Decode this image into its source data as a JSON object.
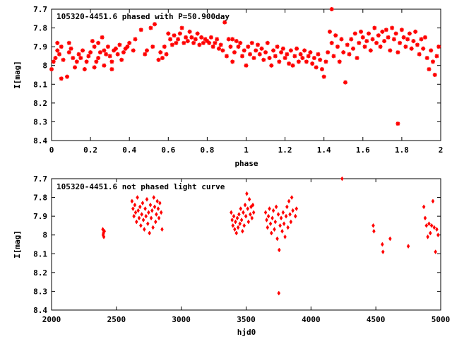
{
  "chart_data": [
    {
      "type": "scatter",
      "title": "105320-4451.6 phased with P=50.900day",
      "xlabel": "phase",
      "ylabel": "I[mag]",
      "xlim": [
        0,
        2
      ],
      "ylim": [
        8.4,
        7.7
      ],
      "y_inverted": true,
      "marker": "star",
      "color": "#ff0000",
      "x_ticks": [
        0,
        0.2,
        0.4,
        0.6,
        0.8,
        1,
        1.2,
        1.4,
        1.6,
        1.8,
        2
      ],
      "x_tick_labels": [
        "0",
        "0.2",
        "0.4",
        "0.6",
        "0.8",
        "1",
        "1.2",
        "1.4",
        "1.6",
        "1.8",
        "2"
      ],
      "y_ticks": [
        7.7,
        7.8,
        7.9,
        8,
        8.1,
        8.2,
        8.3,
        8.4
      ],
      "y_tick_labels": [
        "7.7",
        "7.8",
        "7.9",
        "8",
        "8.1",
        "8.2",
        "8.3",
        "8.4"
      ],
      "points": [
        [
          0.0,
          8.02
        ],
        [
          0.01,
          7.98
        ],
        [
          0.02,
          7.96
        ],
        [
          0.03,
          7.88
        ],
        [
          0.03,
          7.92
        ],
        [
          0.04,
          7.94
        ],
        [
          0.05,
          7.9
        ],
        [
          0.05,
          8.07
        ],
        [
          0.06,
          7.97
        ],
        [
          0.08,
          8.06
        ],
        [
          0.09,
          7.88
        ],
        [
          0.09,
          7.93
        ],
        [
          0.1,
          7.91
        ],
        [
          0.11,
          7.96
        ],
        [
          0.12,
          8.01
        ],
        [
          0.13,
          7.98
        ],
        [
          0.14,
          7.94
        ],
        [
          0.15,
          7.96
        ],
        [
          0.16,
          7.92
        ],
        [
          0.17,
          8.02
        ],
        [
          0.18,
          7.98
        ],
        [
          0.19,
          7.95
        ],
        [
          0.2,
          7.93
        ],
        [
          0.21,
          7.87
        ],
        [
          0.22,
          7.9
        ],
        [
          0.22,
          8.01
        ],
        [
          0.23,
          7.98
        ],
        [
          0.24,
          7.96
        ],
        [
          0.24,
          7.88
        ],
        [
          0.25,
          7.93
        ],
        [
          0.26,
          7.85
        ],
        [
          0.27,
          7.92
        ],
        [
          0.27,
          8.0
        ],
        [
          0.28,
          7.94
        ],
        [
          0.29,
          7.9
        ],
        [
          0.3,
          7.95
        ],
        [
          0.31,
          7.98
        ],
        [
          0.31,
          8.02
        ],
        [
          0.32,
          7.92
        ],
        [
          0.33,
          7.91
        ],
        [
          0.34,
          7.94
        ],
        [
          0.35,
          7.89
        ],
        [
          0.36,
          7.97
        ],
        [
          0.37,
          7.93
        ],
        [
          0.38,
          7.91
        ],
        [
          0.39,
          7.9
        ],
        [
          0.4,
          7.88
        ],
        [
          0.42,
          7.92
        ],
        [
          0.43,
          7.86
        ],
        [
          0.46,
          7.81
        ],
        [
          0.48,
          7.94
        ],
        [
          0.49,
          7.92
        ],
        [
          0.51,
          7.8
        ],
        [
          0.52,
          7.9
        ],
        [
          0.53,
          7.78
        ],
        [
          0.55,
          7.97
        ],
        [
          0.56,
          7.93
        ],
        [
          0.57,
          7.96
        ],
        [
          0.58,
          7.9
        ],
        [
          0.59,
          7.94
        ],
        [
          0.6,
          7.83
        ],
        [
          0.61,
          7.86
        ],
        [
          0.62,
          7.89
        ],
        [
          0.63,
          7.84
        ],
        [
          0.64,
          7.88
        ],
        [
          0.65,
          7.86
        ],
        [
          0.66,
          7.83
        ],
        [
          0.67,
          7.8
        ],
        [
          0.68,
          7.88
        ],
        [
          0.69,
          7.85
        ],
        [
          0.7,
          7.87
        ],
        [
          0.71,
          7.82
        ],
        [
          0.72,
          7.85
        ],
        [
          0.73,
          7.88
        ],
        [
          0.74,
          7.86
        ],
        [
          0.75,
          7.83
        ],
        [
          0.76,
          7.89
        ],
        [
          0.77,
          7.85
        ],
        [
          0.78,
          7.88
        ],
        [
          0.79,
          7.86
        ],
        [
          0.8,
          7.87
        ],
        [
          0.81,
          7.88
        ],
        [
          0.82,
          7.85
        ],
        [
          0.83,
          7.9
        ],
        [
          0.84,
          7.88
        ],
        [
          0.85,
          7.86
        ],
        [
          0.86,
          7.91
        ],
        [
          0.87,
          7.89
        ],
        [
          0.88,
          7.92
        ],
        [
          0.89,
          7.77
        ],
        [
          0.9,
          7.95
        ],
        [
          0.91,
          7.86
        ],
        [
          0.92,
          7.9
        ],
        [
          0.93,
          7.98
        ],
        [
          0.93,
          7.86
        ],
        [
          0.94,
          7.93
        ],
        [
          0.95,
          7.87
        ],
        [
          0.96,
          7.9
        ],
        [
          0.97,
          7.88
        ],
        [
          0.98,
          7.95
        ],
        [
          0.99,
          7.92
        ],
        [
          1.0,
          8.0
        ],
        [
          1.01,
          7.9
        ],
        [
          1.02,
          7.94
        ],
        [
          1.03,
          7.88
        ],
        [
          1.04,
          7.96
        ],
        [
          1.05,
          7.92
        ],
        [
          1.06,
          7.89
        ],
        [
          1.07,
          7.94
        ],
        [
          1.08,
          7.91
        ],
        [
          1.09,
          7.97
        ],
        [
          1.1,
          7.93
        ],
        [
          1.11,
          7.88
        ],
        [
          1.12,
          7.96
        ],
        [
          1.13,
          8.0
        ],
        [
          1.14,
          7.92
        ],
        [
          1.15,
          7.95
        ],
        [
          1.16,
          7.9
        ],
        [
          1.17,
          7.98
        ],
        [
          1.18,
          7.93
        ],
        [
          1.19,
          7.91
        ],
        [
          1.2,
          7.96
        ],
        [
          1.21,
          7.94
        ],
        [
          1.22,
          7.99
        ],
        [
          1.23,
          7.92
        ],
        [
          1.24,
          8.0
        ],
        [
          1.25,
          7.95
        ],
        [
          1.26,
          7.91
        ],
        [
          1.27,
          7.98
        ],
        [
          1.28,
          7.94
        ],
        [
          1.29,
          7.96
        ],
        [
          1.3,
          7.92
        ],
        [
          1.31,
          7.98
        ],
        [
          1.32,
          7.95
        ],
        [
          1.33,
          7.93
        ],
        [
          1.34,
          7.99
        ],
        [
          1.35,
          7.96
        ],
        [
          1.36,
          8.01
        ],
        [
          1.37,
          7.94
        ],
        [
          1.38,
          7.97
        ],
        [
          1.39,
          8.02
        ],
        [
          1.4,
          8.06
        ],
        [
          1.41,
          7.98
        ],
        [
          1.42,
          7.93
        ],
        [
          1.43,
          7.82
        ],
        [
          1.44,
          7.88
        ],
        [
          1.44,
          7.7
        ],
        [
          1.45,
          7.95
        ],
        [
          1.46,
          7.84
        ],
        [
          1.47,
          7.9
        ],
        [
          1.48,
          7.98
        ],
        [
          1.49,
          7.86
        ],
        [
          1.5,
          7.93
        ],
        [
          1.51,
          8.09
        ],
        [
          1.52,
          7.89
        ],
        [
          1.53,
          7.94
        ],
        [
          1.54,
          7.86
        ],
        [
          1.55,
          7.91
        ],
        [
          1.56,
          7.83
        ],
        [
          1.57,
          7.96
        ],
        [
          1.58,
          7.88
        ],
        [
          1.59,
          7.82
        ],
        [
          1.6,
          7.85
        ],
        [
          1.61,
          7.9
        ],
        [
          1.62,
          7.87
        ],
        [
          1.63,
          7.83
        ],
        [
          1.64,
          7.92
        ],
        [
          1.65,
          7.86
        ],
        [
          1.66,
          7.8
        ],
        [
          1.67,
          7.88
        ],
        [
          1.68,
          7.84
        ],
        [
          1.69,
          7.9
        ],
        [
          1.7,
          7.82
        ],
        [
          1.71,
          7.87
        ],
        [
          1.72,
          7.81
        ],
        [
          1.73,
          7.85
        ],
        [
          1.74,
          7.92
        ],
        [
          1.75,
          7.8
        ],
        [
          1.76,
          7.86
        ],
        [
          1.77,
          7.83
        ],
        [
          1.78,
          7.93
        ],
        [
          1.78,
          8.31
        ],
        [
          1.79,
          7.88
        ],
        [
          1.8,
          7.81
        ],
        [
          1.81,
          7.85
        ],
        [
          1.82,
          7.9
        ],
        [
          1.83,
          7.86
        ],
        [
          1.84,
          7.83
        ],
        [
          1.85,
          7.91
        ],
        [
          1.86,
          7.87
        ],
        [
          1.87,
          7.82
        ],
        [
          1.88,
          7.89
        ],
        [
          1.89,
          7.94
        ],
        [
          1.9,
          7.86
        ],
        [
          1.91,
          7.91
        ],
        [
          1.92,
          7.85
        ],
        [
          1.93,
          7.96
        ],
        [
          1.94,
          8.02
        ],
        [
          1.95,
          7.92
        ],
        [
          1.96,
          7.98
        ],
        [
          1.97,
          8.05
        ],
        [
          1.98,
          7.95
        ],
        [
          1.99,
          7.9
        ]
      ]
    },
    {
      "type": "scatter",
      "title": "105320-4451.6 not phased light curve",
      "xlabel": "hjd0",
      "ylabel": "I[mag]",
      "xlim": [
        2000,
        5000
      ],
      "ylim": [
        8.4,
        7.7
      ],
      "y_inverted": true,
      "marker": "diamond",
      "color": "#ff0000",
      "x_ticks": [
        2000,
        2500,
        3000,
        3500,
        4000,
        4500,
        5000
      ],
      "x_tick_labels": [
        "2000",
        "2500",
        "3000",
        "3500",
        "4000",
        "4500",
        "5000"
      ],
      "y_ticks": [
        7.7,
        7.8,
        7.9,
        8,
        8.1,
        8.2,
        8.3,
        8.4
      ],
      "y_tick_labels": [
        "7.7",
        "7.8",
        "7.9",
        "8",
        "8.1",
        "8.2",
        "8.3",
        "8.4"
      ],
      "points": [
        [
          2395,
          7.97
        ],
        [
          2398,
          8.0
        ],
        [
          2400,
          7.99
        ],
        [
          2403,
          8.01
        ],
        [
          2407,
          7.98
        ],
        [
          2620,
          7.82
        ],
        [
          2628,
          7.86
        ],
        [
          2635,
          7.9
        ],
        [
          2642,
          7.84
        ],
        [
          2648,
          7.88
        ],
        [
          2655,
          7.93
        ],
        [
          2662,
          7.8
        ],
        [
          2668,
          7.87
        ],
        [
          2675,
          7.91
        ],
        [
          2682,
          7.85
        ],
        [
          2688,
          7.95
        ],
        [
          2695,
          7.89
        ],
        [
          2702,
          7.83
        ],
        [
          2708,
          7.92
        ],
        [
          2715,
          7.97
        ],
        [
          2722,
          7.86
        ],
        [
          2728,
          7.9
        ],
        [
          2735,
          7.81
        ],
        [
          2742,
          7.94
        ],
        [
          2748,
          7.88
        ],
        [
          2755,
          7.99
        ],
        [
          2762,
          7.84
        ],
        [
          2768,
          7.91
        ],
        [
          2775,
          7.87
        ],
        [
          2782,
          7.96
        ],
        [
          2788,
          7.8
        ],
        [
          2795,
          7.85
        ],
        [
          2802,
          7.93
        ],
        [
          2808,
          7.89
        ],
        [
          2815,
          7.82
        ],
        [
          2822,
          7.86
        ],
        [
          2828,
          7.91
        ],
        [
          2835,
          7.83
        ],
        [
          2845,
          7.88
        ],
        [
          2852,
          7.97
        ],
        [
          3385,
          7.88
        ],
        [
          3392,
          7.92
        ],
        [
          3398,
          7.95
        ],
        [
          3405,
          7.9
        ],
        [
          3412,
          7.97
        ],
        [
          3418,
          7.93
        ],
        [
          3425,
          7.99
        ],
        [
          3432,
          7.91
        ],
        [
          3438,
          7.96
        ],
        [
          3445,
          7.89
        ],
        [
          3452,
          7.94
        ],
        [
          3458,
          7.86
        ],
        [
          3465,
          7.92
        ],
        [
          3472,
          7.98
        ],
        [
          3478,
          7.88
        ],
        [
          3485,
          7.95
        ],
        [
          3492,
          7.84
        ],
        [
          3498,
          7.9
        ],
        [
          3505,
          7.78
        ],
        [
          3512,
          7.86
        ],
        [
          3518,
          7.93
        ],
        [
          3525,
          7.81
        ],
        [
          3532,
          7.89
        ],
        [
          3538,
          7.85
        ],
        [
          3545,
          7.91
        ],
        [
          3552,
          7.84
        ],
        [
          3558,
          7.88
        ],
        [
          3650,
          7.88
        ],
        [
          3658,
          7.92
        ],
        [
          3665,
          7.96
        ],
        [
          3672,
          7.9
        ],
        [
          3680,
          7.86
        ],
        [
          3688,
          7.94
        ],
        [
          3695,
          7.99
        ],
        [
          3702,
          7.91
        ],
        [
          3710,
          7.87
        ],
        [
          3718,
          7.97
        ],
        [
          3725,
          7.93
        ],
        [
          3732,
          7.85
        ],
        [
          3740,
          8.02
        ],
        [
          3748,
          7.89
        ],
        [
          3752,
          8.31
        ],
        [
          3755,
          8.08
        ],
        [
          3762,
          7.95
        ],
        [
          3770,
          7.91
        ],
        [
          3778,
          7.98
        ],
        [
          3785,
          7.88
        ],
        [
          3792,
          7.94
        ],
        [
          3800,
          8.01
        ],
        [
          3808,
          7.9
        ],
        [
          3815,
          7.85
        ],
        [
          3822,
          7.96
        ],
        [
          3830,
          7.82
        ],
        [
          3838,
          7.89
        ],
        [
          3845,
          7.93
        ],
        [
          3852,
          7.8
        ],
        [
          3860,
          7.87
        ],
        [
          3880,
          7.9
        ],
        [
          3888,
          7.86
        ],
        [
          4240,
          7.7
        ],
        [
          4480,
          7.95
        ],
        [
          4485,
          7.98
        ],
        [
          4550,
          8.05
        ],
        [
          4555,
          8.09
        ],
        [
          4610,
          8.02
        ],
        [
          4750,
          8.06
        ],
        [
          4870,
          7.85
        ],
        [
          4880,
          7.91
        ],
        [
          4890,
          7.95
        ],
        [
          4900,
          8.01
        ],
        [
          4910,
          7.94
        ],
        [
          4920,
          7.99
        ],
        [
          4930,
          7.95
        ],
        [
          4940,
          7.82
        ],
        [
          4950,
          7.96
        ],
        [
          4960,
          8.09
        ],
        [
          4970,
          7.97
        ],
        [
          4980,
          8.0
        ]
      ]
    }
  ]
}
